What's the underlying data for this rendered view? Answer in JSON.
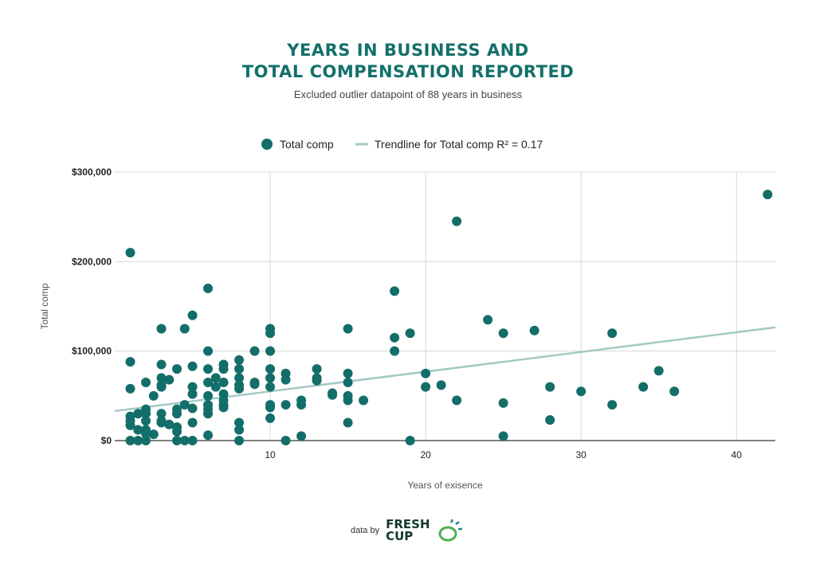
{
  "chart_data": {
    "type": "scatter",
    "title_lines": [
      "YEARS IN BUSINESS AND",
      "TOTAL COMPENSATION REPORTED"
    ],
    "subtitle": "Excluded outlier datapoint of 88 years in business",
    "xlabel": "Years of exisence",
    "ylabel": "Total comp",
    "xlim": [
      0,
      42.5
    ],
    "ylim": [
      0,
      300000
    ],
    "x_ticks": [
      10,
      20,
      30,
      40
    ],
    "x_tick_labels": [
      "10",
      "20",
      "30",
      "40"
    ],
    "y_ticks": [
      0,
      100000,
      200000,
      300000
    ],
    "y_tick_labels": [
      "$0",
      "$100,000",
      "$200,000",
      "$300,000"
    ],
    "grid": true,
    "legend_position": "top",
    "legend": [
      "Total comp",
      "Trendline for Total comp R² = 0.17"
    ],
    "colors": {
      "points": "#136e6a",
      "trendline": "#a3c9c5",
      "title": "#13706a"
    },
    "trendline": {
      "type": "linear",
      "intercept": 33000,
      "slope": 2200,
      "r_squared": 0.17
    },
    "series": [
      {
        "name": "Total comp",
        "points": [
          [
            1,
            210000
          ],
          [
            1,
            88000
          ],
          [
            1,
            58000
          ],
          [
            1,
            27000
          ],
          [
            1,
            22000
          ],
          [
            1,
            17000
          ],
          [
            1,
            0
          ],
          [
            1.5,
            30000
          ],
          [
            1.5,
            12000
          ],
          [
            1.5,
            0
          ],
          [
            2,
            65000
          ],
          [
            2,
            35000
          ],
          [
            2,
            30000
          ],
          [
            2,
            22000
          ],
          [
            2,
            12000
          ],
          [
            2,
            8000
          ],
          [
            2,
            0
          ],
          [
            2.5,
            50000
          ],
          [
            2.5,
            7000
          ],
          [
            3,
            125000
          ],
          [
            3,
            85000
          ],
          [
            3,
            70000
          ],
          [
            3,
            62000
          ],
          [
            3,
            60000
          ],
          [
            3,
            30000
          ],
          [
            3,
            22000
          ],
          [
            3,
            20000
          ],
          [
            3.5,
            68000
          ],
          [
            3.5,
            18000
          ],
          [
            4,
            80000
          ],
          [
            4,
            35000
          ],
          [
            4,
            30000
          ],
          [
            4,
            15000
          ],
          [
            4,
            10000
          ],
          [
            4,
            0
          ],
          [
            4.5,
            125000
          ],
          [
            4.5,
            40000
          ],
          [
            4.5,
            0
          ],
          [
            5,
            140000
          ],
          [
            5,
            83000
          ],
          [
            5,
            60000
          ],
          [
            5,
            52000
          ],
          [
            5,
            36000
          ],
          [
            5,
            20000
          ],
          [
            5,
            0
          ],
          [
            6,
            170000
          ],
          [
            6,
            100000
          ],
          [
            6,
            80000
          ],
          [
            6,
            65000
          ],
          [
            6,
            50000
          ],
          [
            6,
            40000
          ],
          [
            6,
            35000
          ],
          [
            6,
            30000
          ],
          [
            6,
            6000
          ],
          [
            6.5,
            70000
          ],
          [
            6.5,
            60000
          ],
          [
            7,
            85000
          ],
          [
            7,
            80000
          ],
          [
            7,
            65000
          ],
          [
            7,
            52000
          ],
          [
            7,
            45000
          ],
          [
            7,
            40000
          ],
          [
            7,
            37000
          ],
          [
            8,
            90000
          ],
          [
            8,
            80000
          ],
          [
            8,
            70000
          ],
          [
            8,
            62000
          ],
          [
            8,
            58000
          ],
          [
            8,
            20000
          ],
          [
            8,
            12000
          ],
          [
            8,
            0
          ],
          [
            9,
            100000
          ],
          [
            9,
            65000
          ],
          [
            9,
            63000
          ],
          [
            10,
            125000
          ],
          [
            10,
            120000
          ],
          [
            10,
            100000
          ],
          [
            10,
            80000
          ],
          [
            10,
            70000
          ],
          [
            10,
            60000
          ],
          [
            10,
            40000
          ],
          [
            10,
            37000
          ],
          [
            10,
            25000
          ],
          [
            11,
            75000
          ],
          [
            11,
            68000
          ],
          [
            11,
            40000
          ],
          [
            11,
            0
          ],
          [
            12,
            45000
          ],
          [
            12,
            40000
          ],
          [
            12,
            5000
          ],
          [
            13,
            80000
          ],
          [
            13,
            70000
          ],
          [
            13,
            67000
          ],
          [
            14,
            53000
          ],
          [
            14,
            51000
          ],
          [
            15,
            125000
          ],
          [
            15,
            75000
          ],
          [
            15,
            65000
          ],
          [
            15,
            50000
          ],
          [
            15,
            45000
          ],
          [
            15,
            20000
          ],
          [
            16,
            45000
          ],
          [
            18,
            167000
          ],
          [
            18,
            115000
          ],
          [
            18,
            100000
          ],
          [
            19,
            120000
          ],
          [
            19,
            0
          ],
          [
            20,
            75000
          ],
          [
            20,
            60000
          ],
          [
            21,
            62000
          ],
          [
            22,
            245000
          ],
          [
            22,
            45000
          ],
          [
            24,
            135000
          ],
          [
            25,
            120000
          ],
          [
            25,
            42000
          ],
          [
            25,
            5000
          ],
          [
            27,
            123000
          ],
          [
            28,
            60000
          ],
          [
            28,
            23000
          ],
          [
            30,
            55000
          ],
          [
            32,
            120000
          ],
          [
            32,
            40000
          ],
          [
            34,
            60000
          ],
          [
            35,
            78000
          ],
          [
            36,
            55000
          ],
          [
            42,
            275000
          ]
        ]
      }
    ]
  },
  "footer": {
    "data_by": "data by",
    "logo_text": [
      "FRESH",
      "CUP"
    ]
  }
}
